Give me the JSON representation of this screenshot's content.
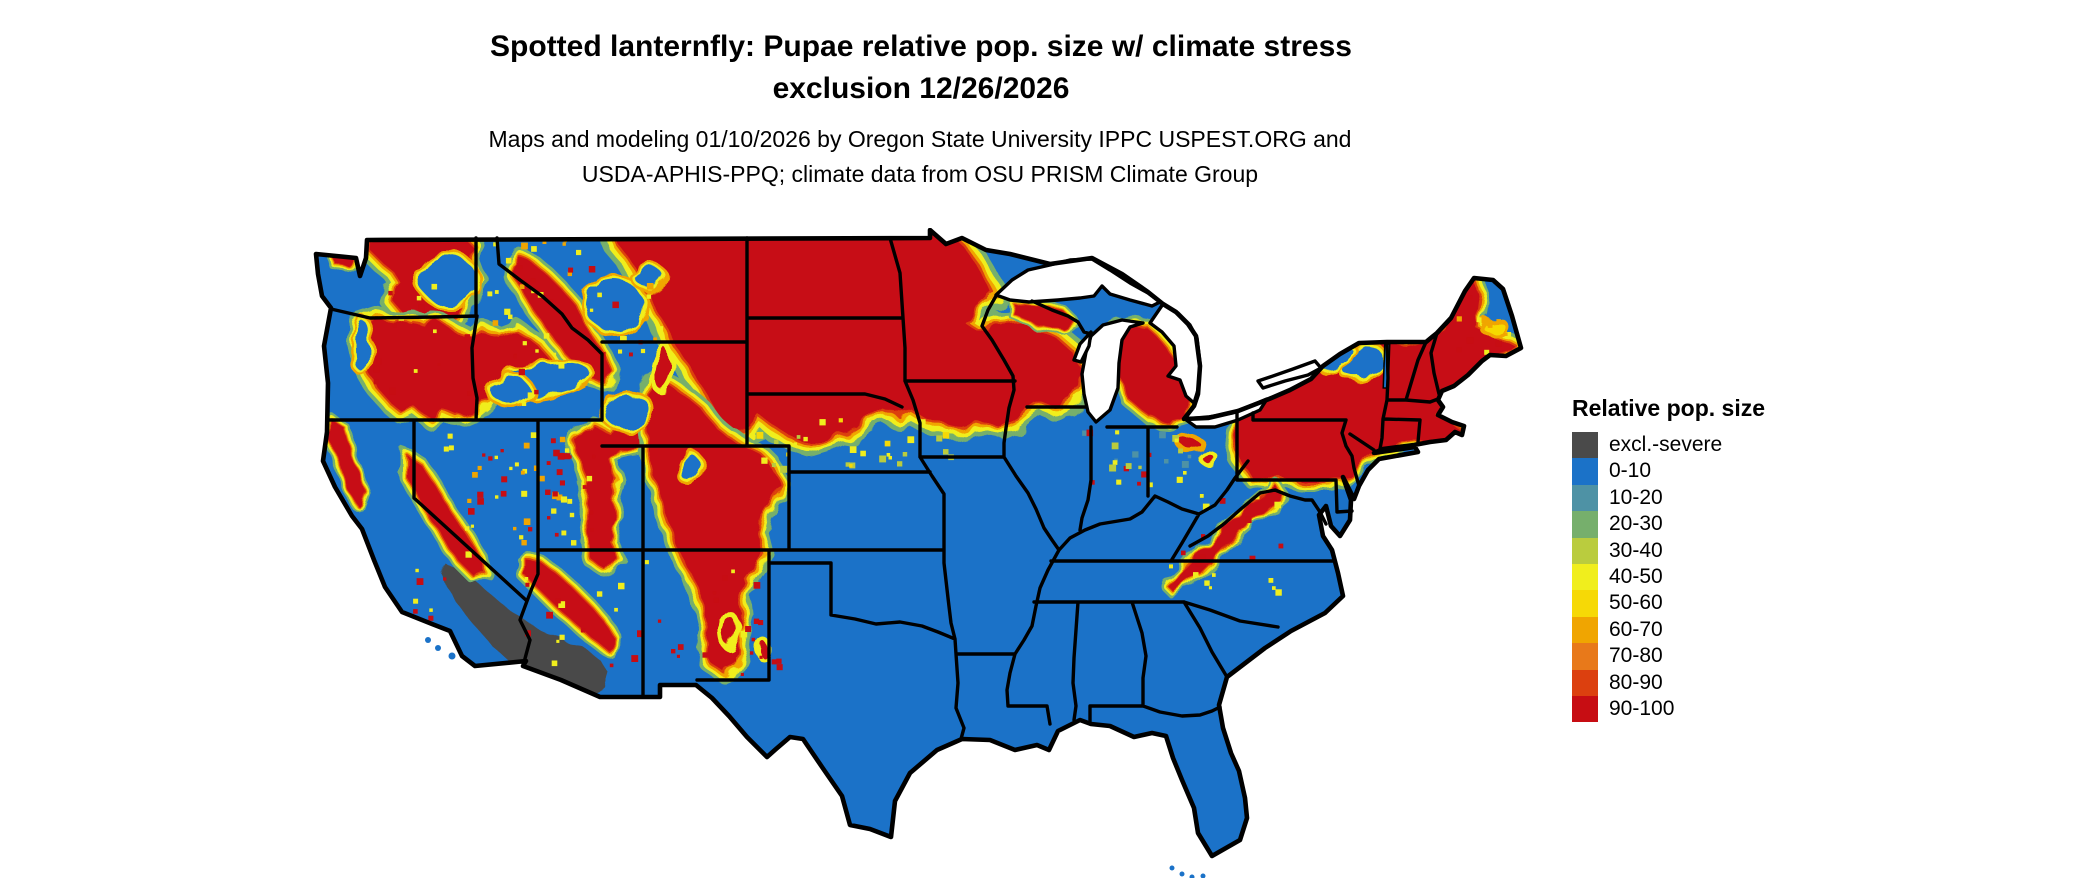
{
  "title": {
    "line1": "Spotted lanternfly: Pupae relative pop. size w/ climate stress",
    "line2": "exclusion 12/26/2026"
  },
  "subtitle": {
    "line1": "Maps and modeling 01/10/2026 by Oregon State University IPPC USPEST.ORG and",
    "line2": "USDA-APHIS-PPQ; climate data from OSU PRISM Climate Group"
  },
  "legend": {
    "title": "Relative pop. size",
    "items": [
      {
        "label": "excl.-severe",
        "color": "#4A4A4A"
      },
      {
        "label": "0-10",
        "color": "#1B72C8"
      },
      {
        "label": "10-20",
        "color": "#4E92A5"
      },
      {
        "label": "20-30",
        "color": "#76AF6C"
      },
      {
        "label": "30-40",
        "color": "#BACC3E"
      },
      {
        "label": "40-50",
        "color": "#F0EE1D"
      },
      {
        "label": "50-60",
        "color": "#F6D906"
      },
      {
        "label": "60-70",
        "color": "#F0A501"
      },
      {
        "label": "70-80",
        "color": "#E8791A"
      },
      {
        "label": "80-90",
        "color": "#DC400F"
      },
      {
        "label": "90-100",
        "color": "#C70D13"
      }
    ]
  },
  "map": {
    "region": "contiguous United States",
    "water_color": "#FFFFFF",
    "border_color": "#000000"
  }
}
